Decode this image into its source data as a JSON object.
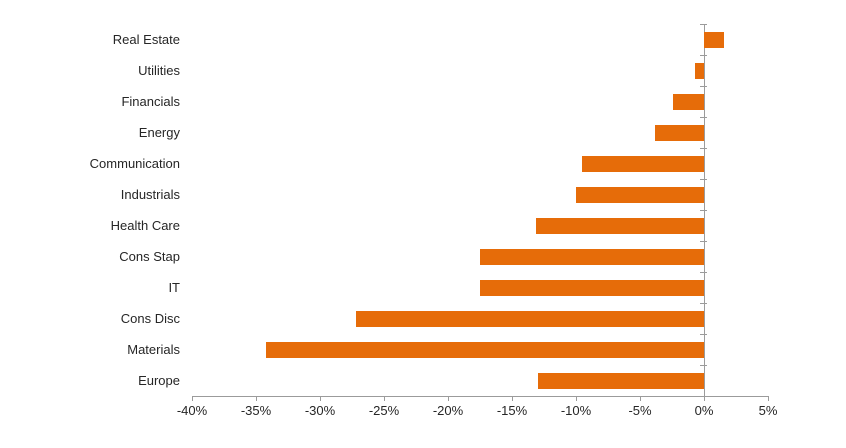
{
  "chart_data": {
    "type": "bar",
    "orientation": "horizontal",
    "title": "",
    "xlabel": "",
    "ylabel": "",
    "categories": [
      "Real Estate",
      "Utilities",
      "Financials",
      "Energy",
      "Communication",
      "Industrials",
      "Health Care",
      "Cons Stap",
      "IT",
      "Cons Disc",
      "Materials",
      "Europe"
    ],
    "values": [
      1.6,
      -0.7,
      -2.4,
      -3.8,
      -9.5,
      -10.0,
      -13.1,
      -17.5,
      -17.5,
      -27.2,
      -34.2,
      -13.0
    ],
    "value_unit": "%",
    "x_ticks": [
      "-40%",
      "-35%",
      "-30%",
      "-25%",
      "-20%",
      "-15%",
      "-10%",
      "-5%",
      "0%",
      "5%"
    ],
    "x_tick_values": [
      -40,
      -35,
      -30,
      -25,
      -20,
      -15,
      -10,
      -5,
      0,
      5
    ],
    "xlim": [
      -40,
      5
    ],
    "grid": false,
    "legend": false,
    "bar_color": "#E66C09",
    "axis_color": "#9B9B9B",
    "label_color": "#262626",
    "background_color": "#FFFFFF"
  }
}
